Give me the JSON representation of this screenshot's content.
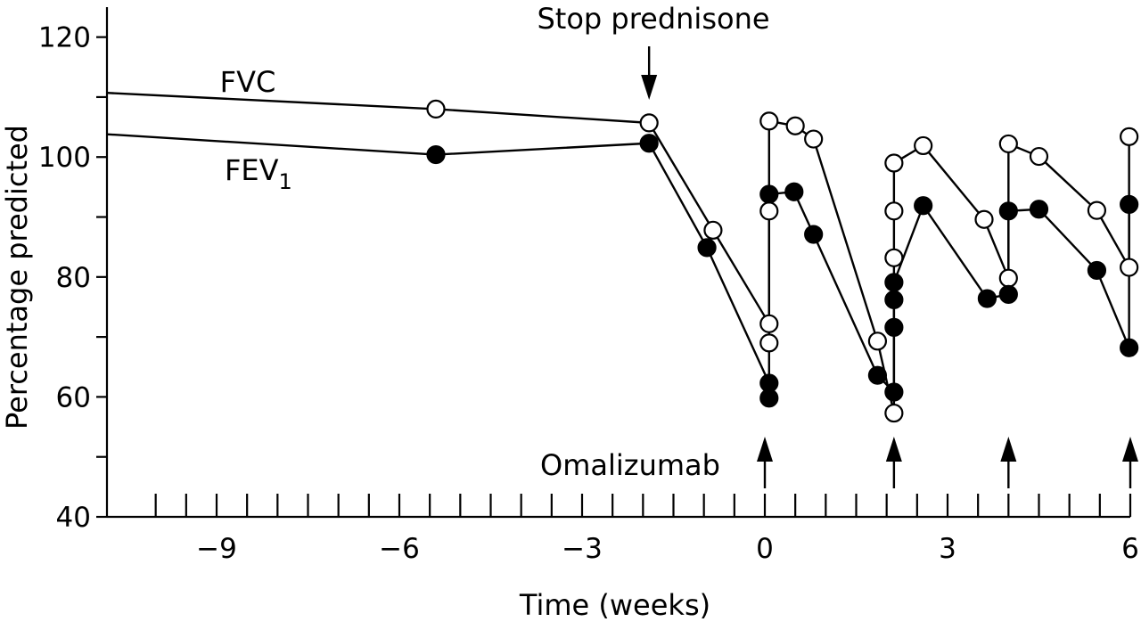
{
  "chart_data": {
    "type": "line",
    "title": "",
    "xlabel": "Time (weeks)",
    "ylabel": "Percentage predicted",
    "xlim": [
      -10.8,
      6
    ],
    "ylim": [
      40,
      125
    ],
    "x_ticks": [
      -9,
      -6,
      -3,
      0,
      3,
      6
    ],
    "x_tick_labels": [
      "−9",
      "−6",
      "−3",
      "0",
      "3",
      "6"
    ],
    "x_minor_ticks": [
      -10,
      -9.5,
      -9,
      -8.5,
      -8,
      -7.5,
      -7,
      -6.5,
      -6,
      -5.5,
      -5,
      -4.5,
      -4,
      -3.5,
      -3,
      -2.5,
      -2,
      -1.5,
      -1,
      -0.5,
      0,
      0.5,
      1,
      1.5,
      2,
      2.5,
      3,
      3.5,
      4,
      4.5,
      5,
      5.5,
      6
    ],
    "y_ticks": [
      40,
      60,
      80,
      100,
      120
    ],
    "y_minor_ticks": [
      50,
      70,
      90,
      110
    ],
    "grid": false,
    "series": [
      {
        "name": "FVC",
        "marker": "open-circle",
        "points": [
          [
            -10.8,
            110.7
          ],
          [
            -5.4,
            108
          ],
          [
            -1.9,
            105.7
          ],
          [
            -0.85,
            87.8
          ],
          [
            0.07,
            72.2
          ],
          [
            0.07,
            69
          ],
          [
            0.07,
            91
          ],
          [
            0.07,
            106
          ],
          [
            0.5,
            105.2
          ],
          [
            0.8,
            103
          ],
          [
            1.85,
            69.3
          ],
          [
            2.12,
            57.3
          ],
          [
            2.12,
            83.2
          ],
          [
            2.12,
            91
          ],
          [
            2.12,
            99
          ],
          [
            2.6,
            101.9
          ],
          [
            3.6,
            89.6
          ],
          [
            4,
            79.8
          ],
          [
            4,
            102.2
          ],
          [
            4.5,
            100.1
          ],
          [
            5.45,
            91.1
          ],
          [
            5.98,
            81.6
          ],
          [
            5.98,
            103.4
          ]
        ]
      },
      {
        "name": "FEV",
        "subscript": "1",
        "marker": "filled-circle",
        "points": [
          [
            -10.8,
            103.8
          ],
          [
            -5.4,
            100.4
          ],
          [
            -1.9,
            102.3
          ],
          [
            -0.95,
            84.9
          ],
          [
            0.07,
            62.3
          ],
          [
            0.07,
            59.8
          ],
          [
            0.07,
            93.8
          ],
          [
            0.48,
            94.2
          ],
          [
            0.8,
            87.1
          ],
          [
            1.85,
            63.6
          ],
          [
            2.12,
            60.8
          ],
          [
            2.12,
            71.6
          ],
          [
            2.12,
            76.2
          ],
          [
            2.12,
            79.1
          ],
          [
            2.6,
            91.9
          ],
          [
            3.65,
            76.4
          ],
          [
            4,
            77.1
          ],
          [
            4,
            91
          ],
          [
            4.5,
            91.3
          ],
          [
            5.45,
            81.1
          ],
          [
            5.98,
            68.2
          ],
          [
            5.98,
            92.1
          ]
        ]
      }
    ],
    "annotations": {
      "stop": {
        "text": "Stop prednisone",
        "x": -1.9
      },
      "omalizumab": {
        "text": "Omalizumab",
        "x": [
          0,
          2.12,
          4,
          6
        ]
      }
    }
  }
}
